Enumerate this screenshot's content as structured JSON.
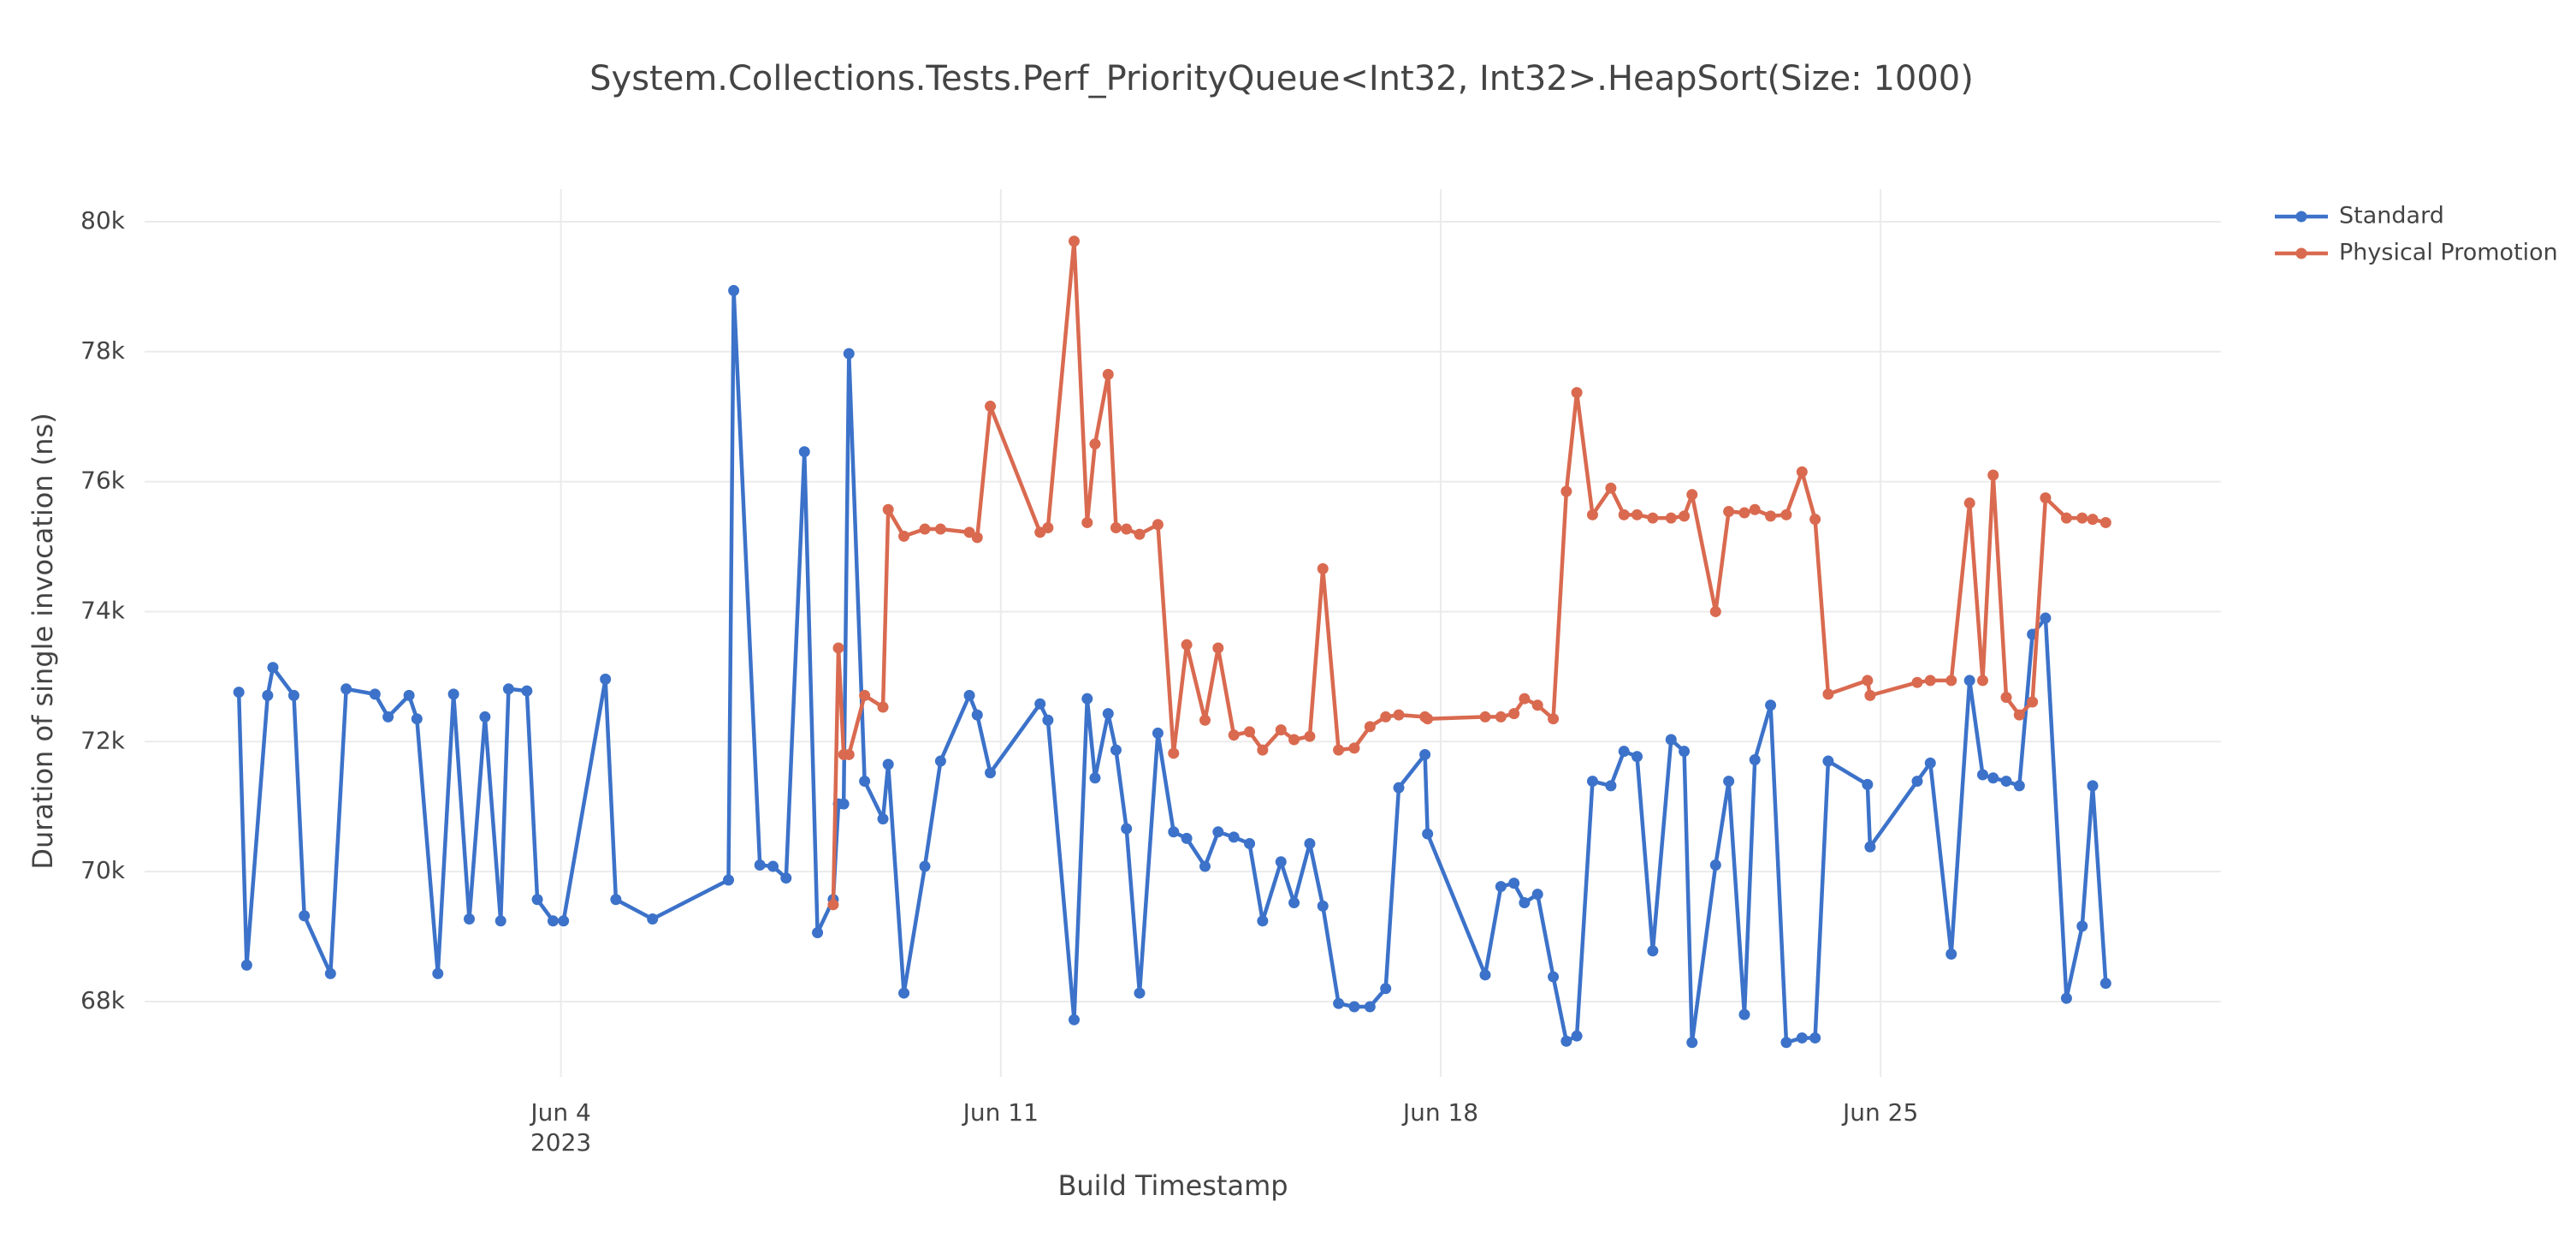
{
  "chart_data": {
    "type": "line",
    "title": "System.Collections.Tests.Perf_PriorityQueue<Int32, Int32>.HeapSort(Size: 1000)",
    "x_label": "Build Timestamp",
    "y_label": "Duration of single invocation (ns)",
    "x": [
      "2023-05-29T21:00",
      "2023-05-30T00:00",
      "2023-05-30T08:00",
      "2023-05-30T10:00",
      "2023-05-30T18:00",
      "2023-05-30T22:00",
      "2023-05-31T08:00",
      "2023-05-31T14:00",
      "2023-06-01T01:00",
      "2023-06-01T06:00",
      "2023-06-01T14:00",
      "2023-06-01T17:00",
      "2023-06-02T01:00",
      "2023-06-02T07:00",
      "2023-06-02T13:00",
      "2023-06-02T19:00",
      "2023-06-03T01:00",
      "2023-06-03T04:00",
      "2023-06-03T11:00",
      "2023-06-03T15:00",
      "2023-06-03T21:00",
      "2023-06-04T01:00",
      "2023-06-04T17:00",
      "2023-06-04T21:00",
      "2023-06-05T11:00",
      "2023-06-06T16:00",
      "2023-06-06T18:00",
      "2023-06-07T04:00",
      "2023-06-07T09:00",
      "2023-06-07T14:00",
      "2023-06-07T21:00",
      "2023-06-08T02:00",
      "2023-06-08T08:00",
      "2023-06-08T10:00",
      "2023-06-08T12:00",
      "2023-06-08T14:00",
      "2023-06-08T20:00",
      "2023-06-09T03:00",
      "2023-06-09T05:00",
      "2023-06-09T11:00",
      "2023-06-09T19:00",
      "2023-06-10T01:00",
      "2023-06-10T12:00",
      "2023-06-10T15:00",
      "2023-06-10T20:00",
      "2023-06-11T15:00",
      "2023-06-11T18:00",
      "2023-06-12T04:00",
      "2023-06-12T09:00",
      "2023-06-12T12:00",
      "2023-06-12T17:00",
      "2023-06-12T20:00",
      "2023-06-13T00:00",
      "2023-06-13T05:00",
      "2023-06-13T12:00",
      "2023-06-13T18:00",
      "2023-06-13T23:00",
      "2023-06-14T06:00",
      "2023-06-14T11:00",
      "2023-06-14T17:00",
      "2023-06-14T23:00",
      "2023-06-15T04:00",
      "2023-06-15T11:00",
      "2023-06-15T16:00",
      "2023-06-15T22:00",
      "2023-06-16T03:00",
      "2023-06-16T09:00",
      "2023-06-16T15:00",
      "2023-06-16T21:00",
      "2023-06-17T03:00",
      "2023-06-17T08:00",
      "2023-06-17T18:00",
      "2023-06-17T19:00",
      "2023-06-18T17:00",
      "2023-06-18T23:00",
      "2023-06-19T04:00",
      "2023-06-19T08:00",
      "2023-06-19T13:00",
      "2023-06-19T19:00",
      "2023-06-20T00:00",
      "2023-06-20T04:00",
      "2023-06-20T10:00",
      "2023-06-20T17:00",
      "2023-06-20T22:00",
      "2023-06-21T03:00",
      "2023-06-21T09:00",
      "2023-06-21T16:00",
      "2023-06-21T21:00",
      "2023-06-22T00:00",
      "2023-06-22T09:00",
      "2023-06-22T14:00",
      "2023-06-22T20:00",
      "2023-06-23T00:00",
      "2023-06-23T06:00",
      "2023-06-23T12:00",
      "2023-06-23T18:00",
      "2023-06-23T23:00",
      "2023-06-24T04:00",
      "2023-06-24T19:00",
      "2023-06-24T20:00",
      "2023-06-25T14:00",
      "2023-06-25T19:00",
      "2023-06-26T03:00",
      "2023-06-26T10:00",
      "2023-06-26T15:00",
      "2023-06-26T19:00",
      "2023-06-27T00:00",
      "2023-06-27T05:00",
      "2023-06-27T10:00",
      "2023-06-27T15:00",
      "2023-06-27T23:00",
      "2023-06-28T05:00",
      "2023-06-28T09:00",
      "2023-06-28T14:00"
    ],
    "series": [
      {
        "name": "Standard",
        "color": "#3c72c9",
        "values": [
          72760,
          68560,
          72710,
          73140,
          72710,
          69320,
          68430,
          72810,
          72730,
          72380,
          72710,
          72350,
          68430,
          72730,
          69270,
          72380,
          69240,
          72810,
          72780,
          69570,
          69240,
          69240,
          72960,
          69570,
          69270,
          69870,
          78940,
          70100,
          70080,
          69900,
          76460,
          69060,
          69570,
          71040,
          71040,
          77970,
          71390,
          70810,
          71650,
          68130,
          70080,
          71700,
          72710,
          72410,
          71520,
          72580,
          72330,
          67720,
          72660,
          71440,
          72430,
          71870,
          70660,
          68130,
          72130,
          70610,
          70510,
          70080,
          70610,
          70530,
          70430,
          69240,
          70150,
          69520,
          70430,
          69470,
          67970,
          67920,
          67920,
          68200,
          71290,
          71800,
          70580,
          68410,
          69770,
          69820,
          69520,
          69650,
          68380,
          67390,
          67470,
          71390,
          71320,
          71850,
          71770,
          68780,
          72030,
          71850,
          67370,
          70100,
          71390,
          67800,
          71720,
          72560,
          67370,
          67440,
          67440,
          71700,
          71340,
          70380,
          71390,
          71670,
          68730,
          72940,
          71490,
          71440,
          71390,
          71320,
          73650,
          73900,
          68050,
          69160,
          71320,
          68280
        ]
      },
      {
        "name": "Physical Promotion",
        "color": "#d96a50",
        "values": [
          null,
          null,
          null,
          null,
          null,
          null,
          null,
          null,
          null,
          null,
          null,
          null,
          null,
          null,
          null,
          null,
          null,
          null,
          null,
          null,
          null,
          null,
          null,
          null,
          null,
          null,
          null,
          null,
          null,
          null,
          null,
          null,
          69490,
          73440,
          71800,
          71800,
          72710,
          72530,
          75570,
          75160,
          75270,
          75270,
          75220,
          75140,
          77160,
          75220,
          75290,
          79700,
          75370,
          76580,
          77650,
          75290,
          75270,
          75190,
          75340,
          71820,
          73490,
          72330,
          73440,
          72100,
          72150,
          71870,
          72180,
          72030,
          72080,
          74660,
          71870,
          71900,
          72230,
          72380,
          72410,
          72380,
          72350,
          72380,
          72380,
          72430,
          72660,
          72560,
          72350,
          75850,
          77370,
          75490,
          75900,
          75490,
          75490,
          75440,
          75440,
          75470,
          75800,
          74000,
          75540,
          75520,
          75570,
          75470,
          75490,
          76150,
          75420,
          72730,
          72940,
          72710,
          72910,
          72940,
          72940,
          75670,
          72940,
          76100,
          72680,
          72410,
          72610,
          75750,
          75440,
          75440,
          75420,
          75370
        ]
      }
    ],
    "xlim": [
      "2023-05-28T09:00",
      "2023-06-30T10:00"
    ],
    "xticks": [
      {
        "value": "2023-06-04T00:00",
        "label": "Jun 4"
      },
      {
        "value": "2023-06-11T00:00",
        "label": "Jun 11"
      },
      {
        "value": "2023-06-18T00:00",
        "label": "Jun 18"
      },
      {
        "value": "2023-06-25T00:00",
        "label": "Jun 25"
      }
    ],
    "xtick_year": "2023",
    "ylim": [
      66840,
      80500
    ],
    "yticks": [
      {
        "value": 68000,
        "label": "68k"
      },
      {
        "value": 70000,
        "label": "70k"
      },
      {
        "value": 72000,
        "label": "72k"
      },
      {
        "value": 74000,
        "label": "74k"
      },
      {
        "value": 76000,
        "label": "76k"
      },
      {
        "value": 78000,
        "label": "78k"
      },
      {
        "value": 80000,
        "label": "80k"
      }
    ],
    "grid": true,
    "markers": true,
    "legend": "outside-top-right"
  }
}
